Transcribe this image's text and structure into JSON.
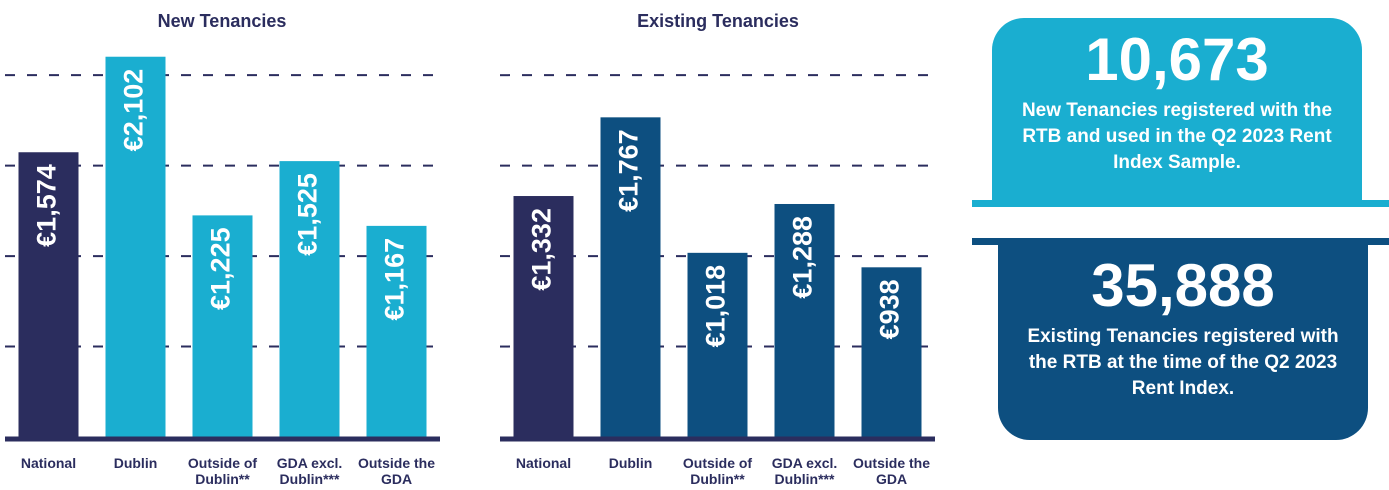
{
  "chart_data": [
    {
      "type": "bar",
      "title": "New Tenancies",
      "categories": [
        "National",
        "Dublin",
        "Outside of Dublin**",
        "GDA excl. Dublin***",
        "Outside the GDA"
      ],
      "values": [
        1574,
        2102,
        1225,
        1525,
        1167
      ],
      "value_labels": [
        "€1,574",
        "€2,102",
        "€1,225",
        "€1,525",
        "€1,167"
      ],
      "colors": [
        "#2b2d5e",
        "#1aaed0",
        "#1aaed0",
        "#1aaed0",
        "#1aaed0"
      ],
      "ylim": [
        0,
        2200
      ],
      "yticks": [
        500,
        1000,
        1500,
        2000
      ],
      "grid": true
    },
    {
      "type": "bar",
      "title": "Existing Tenancies",
      "categories": [
        "National",
        "Dublin",
        "Outside of Dublin**",
        "GDA excl. Dublin***",
        "Outside the GDA"
      ],
      "values": [
        1332,
        1767,
        1018,
        1288,
        938
      ],
      "value_labels": [
        "€1,332",
        "€1,767",
        "€1,018",
        "€1,288",
        "€938"
      ],
      "colors": [
        "#2b2d5e",
        "#0d4f80",
        "#0d4f80",
        "#0d4f80",
        "#0d4f80"
      ],
      "ylim": [
        0,
        2200
      ],
      "yticks": [
        500,
        1000,
        1500,
        2000
      ],
      "grid": true
    }
  ],
  "stats": [
    {
      "number": "10,673",
      "text": "New Tenancies registered with the RTB and used in the Q2 2023 Rent Index Sample."
    },
    {
      "number": "35,888",
      "text": "Existing Tenancies registered with the RTB at the time of the Q2 2023 Rent Index."
    }
  ]
}
